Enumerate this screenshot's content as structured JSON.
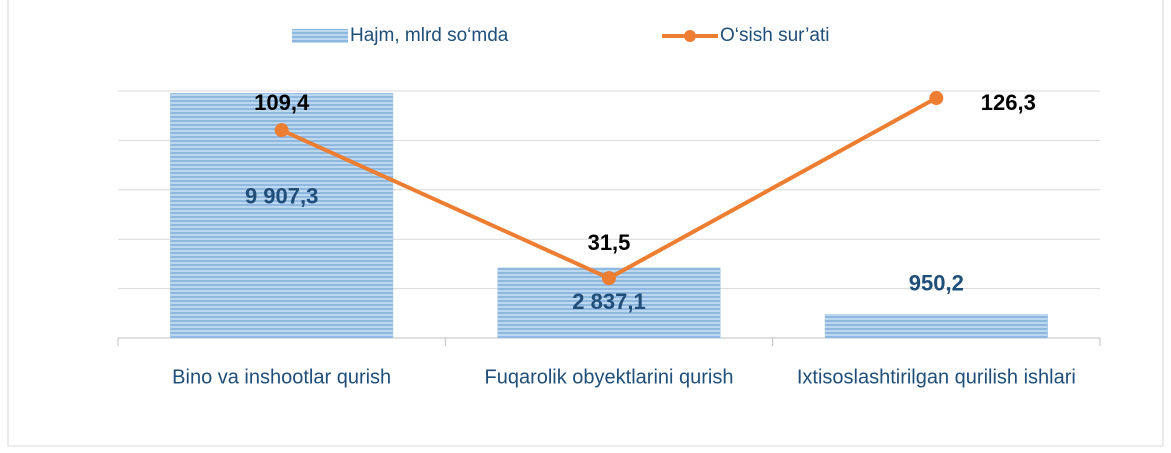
{
  "chart_data": {
    "type": "bar_line",
    "categories": [
      "Bino va inshootlar qurish",
      "Fuqarolik  obyektlarini qurish",
      "Ixtisoslashtirilgan qurilish ishlari"
    ],
    "series": [
      {
        "name": "Hajm, mlrd so‘mda",
        "type": "bar",
        "color": "#9dc3e6",
        "values": [
          9907.3,
          2837.1,
          950.2
        ],
        "value_labels": [
          "9 907,3",
          "2 837,1",
          "950,2"
        ]
      },
      {
        "name": "O‘sish sur’ati",
        "type": "line",
        "axis": "y2",
        "color": "#ed7d31",
        "values": [
          109.4,
          31.5,
          126.3
        ],
        "value_labels": [
          "109,4",
          "31,5",
          "126,3"
        ]
      }
    ],
    "ylim": [
      0,
      10000
    ],
    "yticks": [
      0,
      2000,
      4000,
      6000,
      8000,
      10000
    ],
    "y2lim": [
      0,
      130
    ],
    "grid": true,
    "legend": "top"
  }
}
